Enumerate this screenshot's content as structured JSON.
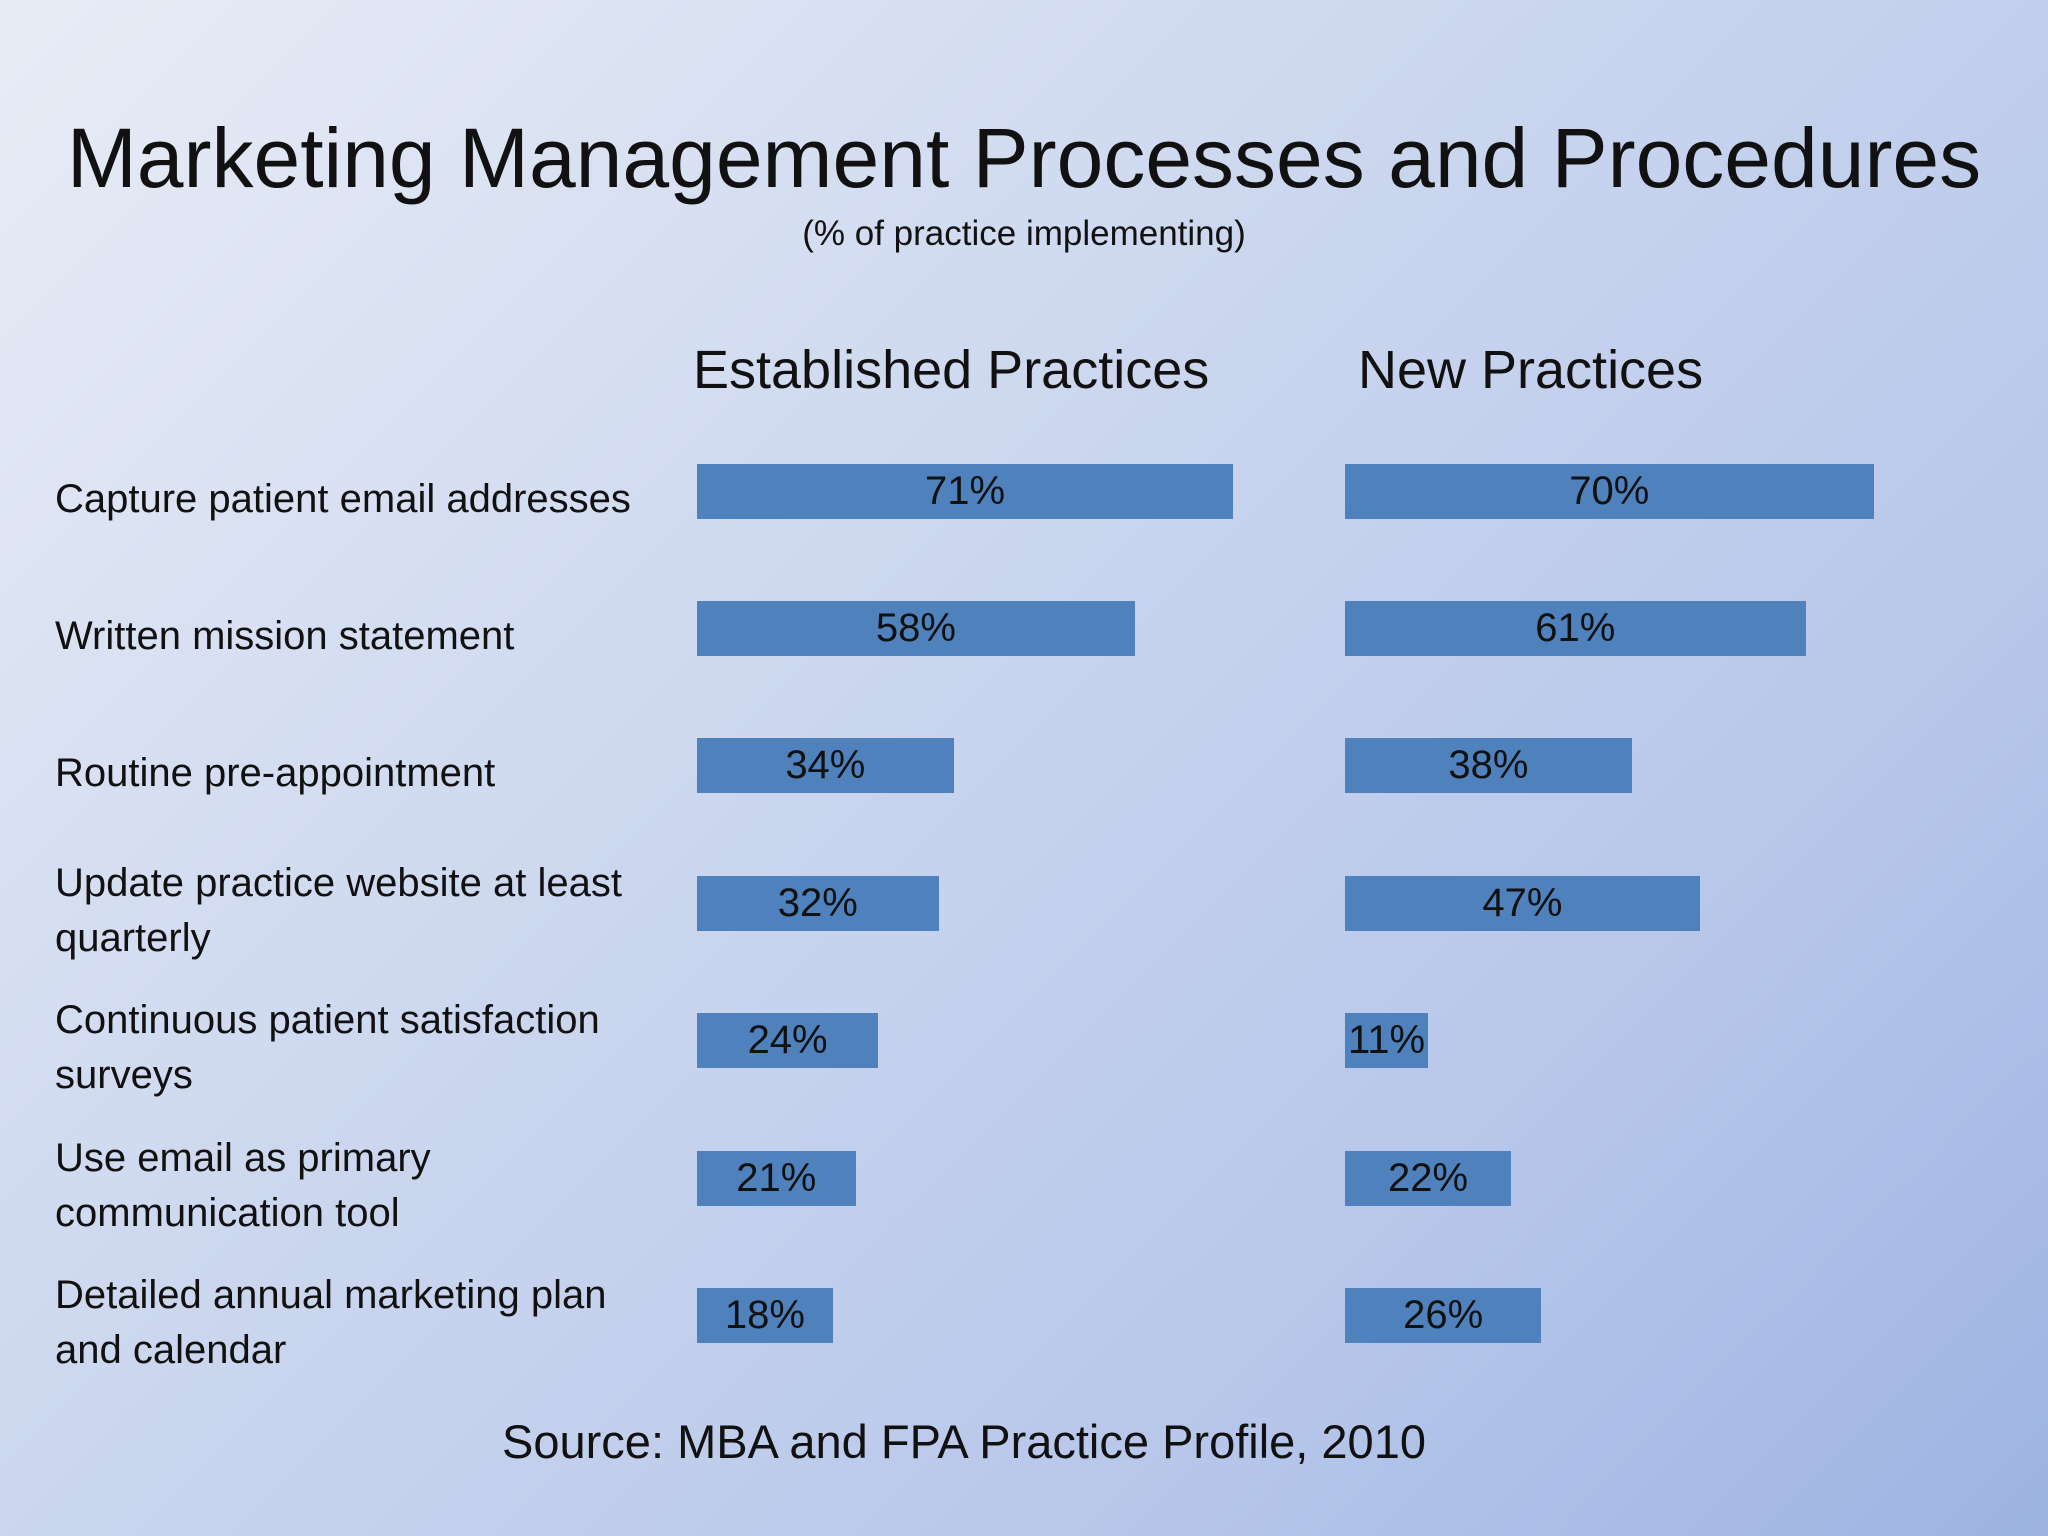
{
  "slide": {
    "title": "Marketing Management Processes and Procedures",
    "subtitle": "(% of practice implementing)",
    "source": "Source: MBA and FPA Practice Profile, 2010"
  },
  "chart_data": {
    "type": "bar",
    "orientation": "horizontal",
    "title": "Marketing Management Processes and Procedures",
    "subtitle": "(% of practice implementing)",
    "unit": "%",
    "categories": [
      "Capture patient email addresses",
      "Written mission statement",
      "Routine pre-appointment",
      "Update practice website at least quarterly",
      "Continuous patient satisfaction surveys",
      "Use email as primary communication tool",
      "Detailed annual marketing plan and calendar"
    ],
    "series": [
      {
        "name": "Established Practices",
        "values": [
          71,
          58,
          34,
          32,
          24,
          21,
          18
        ],
        "labels": [
          "71%",
          "58%",
          "34%",
          "32%",
          "24%",
          "21%",
          "18%"
        ]
      },
      {
        "name": "New Practices",
        "values": [
          70,
          61,
          38,
          47,
          11,
          22,
          26
        ],
        "labels": [
          "70%",
          "61%",
          "38%",
          "47%",
          "11%",
          "22%",
          "26%"
        ]
      }
    ],
    "xlim": [
      0,
      100
    ],
    "grid": false,
    "legend": "column headers",
    "colors": {
      "bar": "#4f81bd"
    }
  }
}
